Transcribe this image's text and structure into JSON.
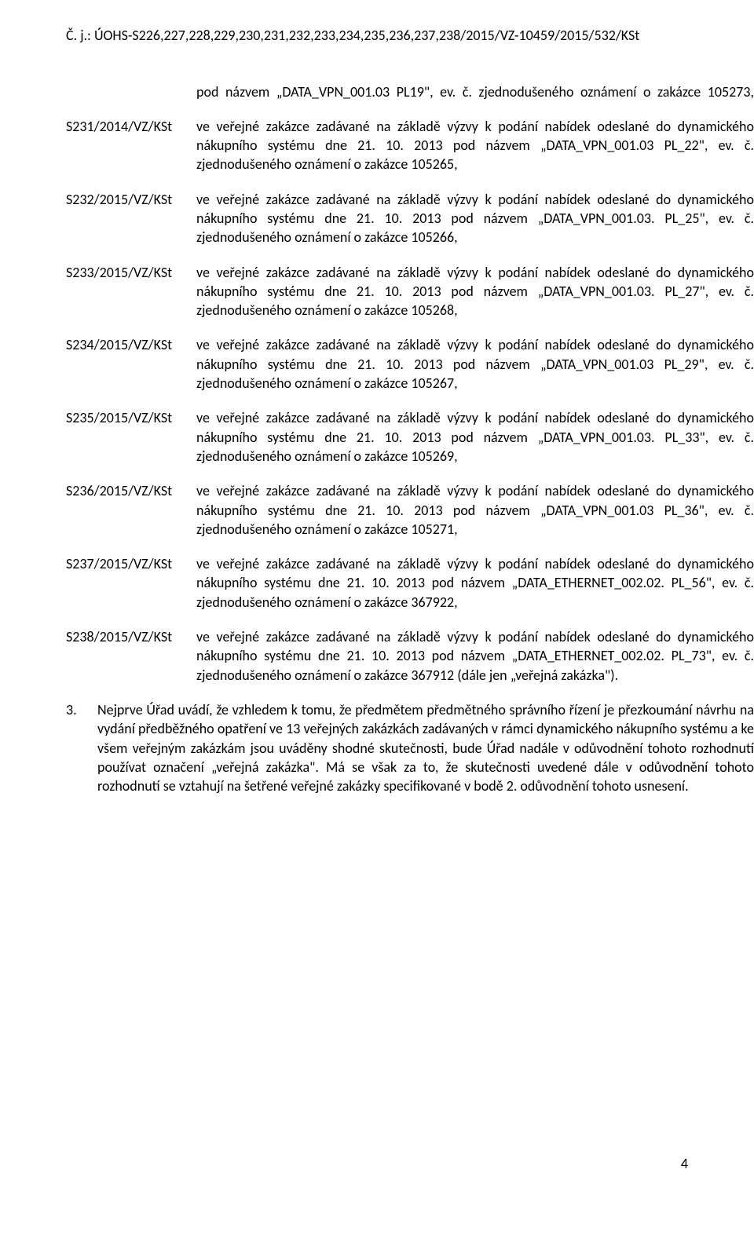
{
  "header": "Č. j.: ÚOHS-S226,227,228,229,230,231,232,233,234,235,236,237,238/2015/VZ-10459/2015/532/KSt",
  "intro": "pod názvem „DATA_VPN_001.03 PL19\", ev. č. zjednodušeného oznámení o zakázce 105273,",
  "entries": [
    {
      "label": "S231/2014/VZ/KSt",
      "body": "ve veřejné zakázce zadávané na základě výzvy k podání nabídek odeslané do dynamického nákupního systému dne 21. 10. 2013 pod názvem „DATA_VPN_001.03 PL_22\", ev. č. zjednodušeného oznámení o zakázce 105265,"
    },
    {
      "label": "S232/2015/VZ/KSt",
      "body": "ve veřejné zakázce zadávané na základě výzvy k podání nabídek odeslané do dynamického nákupního systému dne 21. 10. 2013 pod názvem „DATA_VPN_001.03. PL_25\", ev. č. zjednodušeného oznámení o zakázce 105266,"
    },
    {
      "label": "S233/2015/VZ/KSt",
      "body": "ve veřejné zakázce zadávané na základě výzvy k podání nabídek odeslané do dynamického nákupního systému dne 21. 10. 2013 pod názvem „DATA_VPN_001.03. PL_27\", ev. č. zjednodušeného oznámení o zakázce 105268,"
    },
    {
      "label": "S234/2015/VZ/KSt",
      "body": "ve veřejné zakázce zadávané na základě výzvy k podání nabídek odeslané do dynamického nákupního systému dne 21. 10. 2013 pod názvem „DATA_VPN_001.03 PL_29\", ev. č. zjednodušeného oznámení o zakázce 105267,"
    },
    {
      "label": "S235/2015/VZ/KSt",
      "body": "ve veřejné zakázce zadávané na základě výzvy k podání nabídek odeslané do dynamického nákupního systému dne 21. 10. 2013 pod názvem „DATA_VPN_001.03. PL_33\", ev. č. zjednodušeného oznámení o zakázce 105269,"
    },
    {
      "label": "S236/2015/VZ/KSt",
      "body": "ve veřejné zakázce zadávané na základě výzvy k podání nabídek odeslané do dynamického nákupního systému dne 21. 10. 2013 pod názvem „DATA_VPN_001.03 PL_36\", ev. č. zjednodušeného oznámení o zakázce 105271,"
    },
    {
      "label": "S237/2015/VZ/KSt",
      "body": "ve veřejné zakázce zadávané na základě výzvy k podání nabídek odeslané do dynamického nákupního systému dne 21. 10. 2013 pod názvem „DATA_ETHERNET_002.02. PL_56\", ev. č. zjednodušeného oznámení o zakázce 367922,"
    },
    {
      "label": "S238/2015/VZ/KSt",
      "body": "ve veřejné zakázce zadávané na základě výzvy k podání nabídek odeslané do dynamického nákupního systému dne 21. 10. 2013 pod názvem „DATA_ETHERNET_002.02. PL_73\", ev. č. zjednodušeného oznámení o zakázce 367912 (dále jen „veřejná zakázka\")."
    }
  ],
  "paragraph": {
    "number": "3.",
    "text": "Nejprve Úřad uvádí, že vzhledem k tomu, že předmětem předmětného správního řízení je přezkoumání návrhu na vydání předběžného opatření ve 13 veřejných zakázkách zadávaných v rámci dynamického nákupního systému a ke všem veřejným zakázkám jsou uváděny shodné skutečnosti, bude Úřad nadále v odůvodnění tohoto rozhodnutí používat označení „veřejná zakázka\". Má se však za to, že skutečnosti uvedené dále v odůvodnění tohoto rozhodnutí se vztahují na šetřené veřejné zakázky specifikované v bodě 2. odůvodnění tohoto usnesení."
  },
  "page_number": "4",
  "colors": {
    "text": "#000000",
    "background": "#ffffff"
  },
  "typography": {
    "body_fontsize_pt": 11,
    "font_family": "Calibri"
  }
}
